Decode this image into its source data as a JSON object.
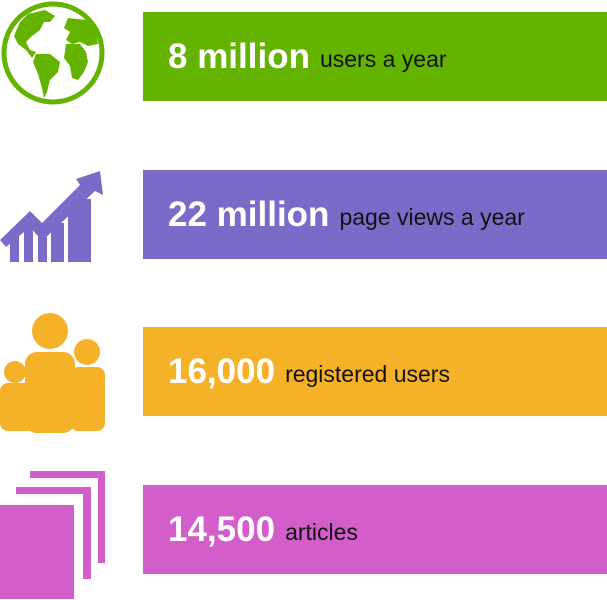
{
  "stats": [
    {
      "value": "8 million",
      "label": "users a year",
      "color": "#63b300",
      "icon": "globe-icon"
    },
    {
      "value": "22 million",
      "label": "page views a year",
      "color": "#7b6bc9",
      "icon": "growth-chart-icon"
    },
    {
      "value": "16,000",
      "label": "registered users",
      "color": "#f5b128",
      "icon": "users-group-icon"
    },
    {
      "value": "14,500",
      "label": "articles",
      "color": "#d35dc9",
      "icon": "stacked-pages-icon"
    }
  ]
}
